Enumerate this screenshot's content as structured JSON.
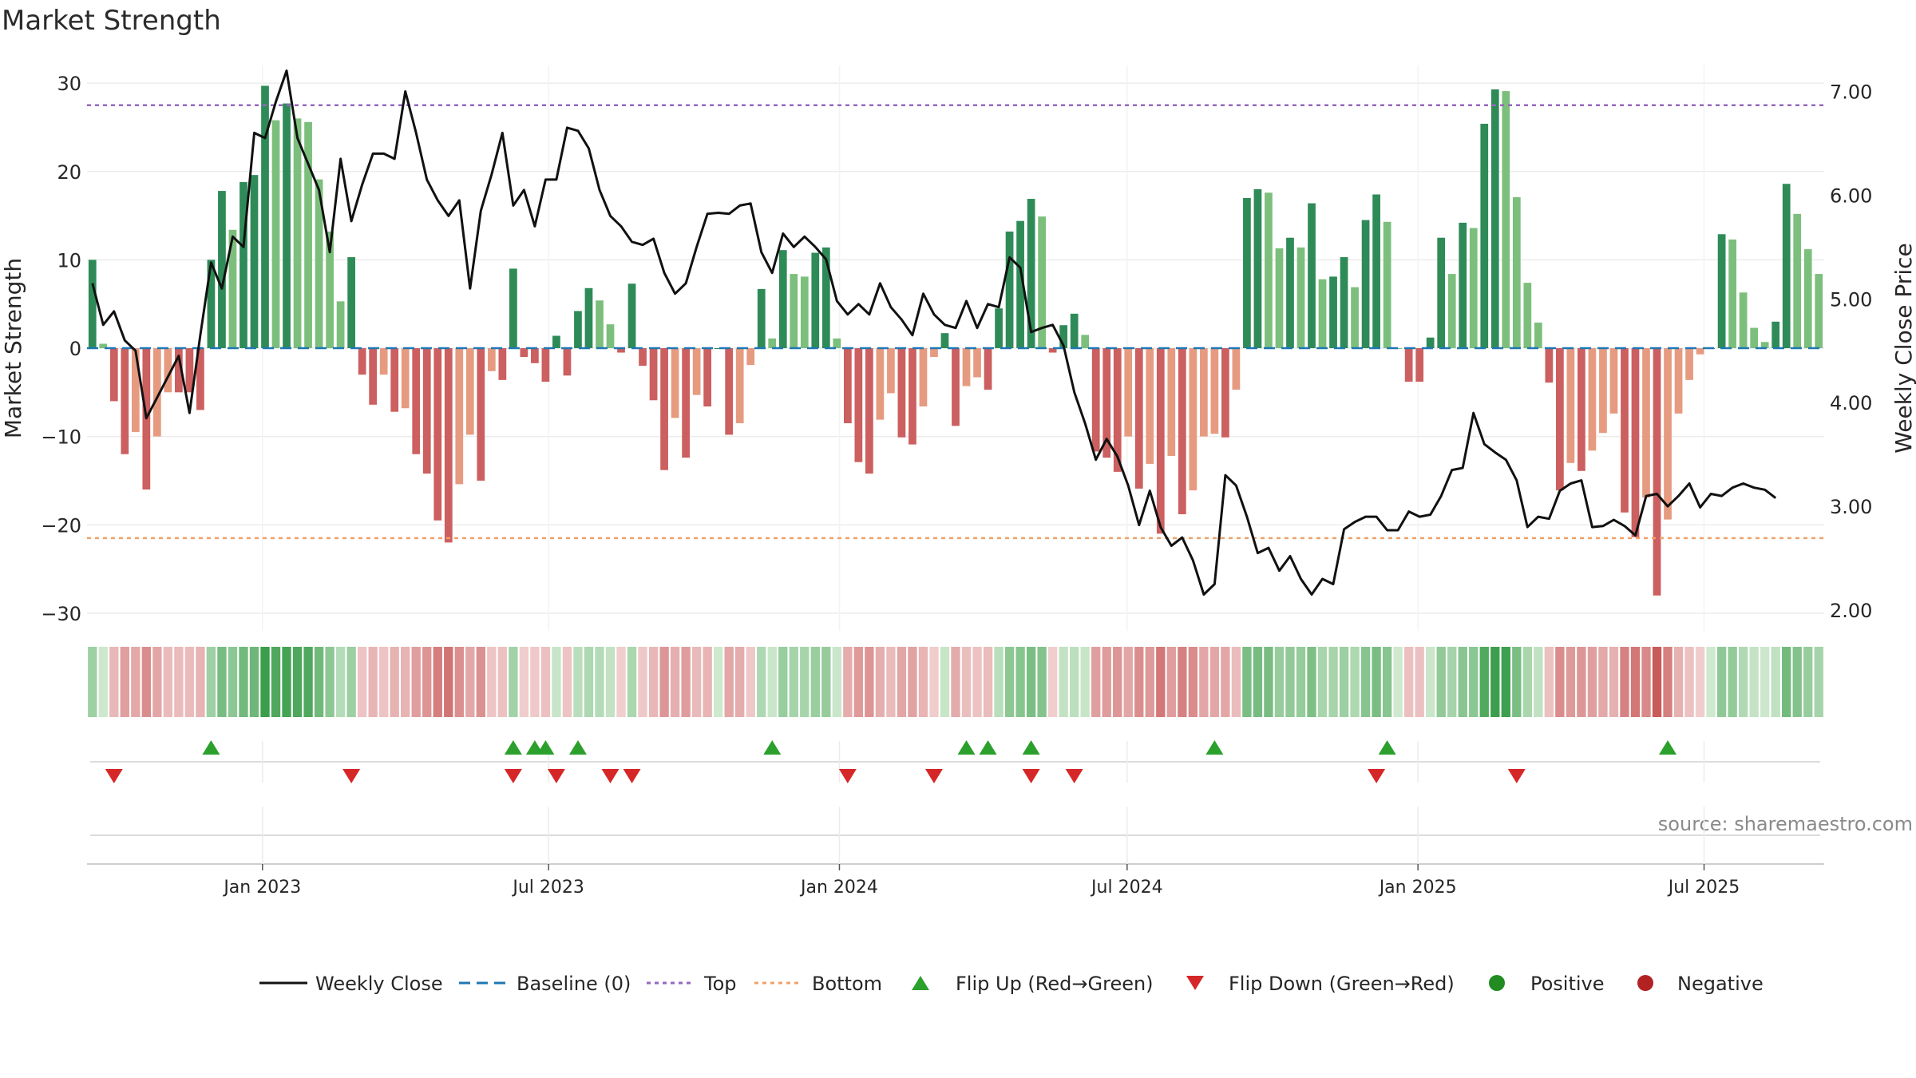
{
  "title": "Market Strength",
  "source": "source: sharemaestro.com",
  "colors": {
    "pos_dark": "#2e8b57",
    "pos_light": "#7cbf7c",
    "neg_dark": "#cc5f5f",
    "neg_light": "#e69b80",
    "top_line": "#9467bd",
    "bottom_line": "#f0a068",
    "baseline": "#1f77b4",
    "close_line": "#111111",
    "flip_up": "#2ca02c",
    "flip_down": "#d62728",
    "positive_dot": "#228b22",
    "negative_dot": "#b22222"
  },
  "chart_data": {
    "type": "bar",
    "title": "Market Strength",
    "ylabel": "Market Strength",
    "y2label": "Weekly Close Price",
    "ylim": [
      -32,
      32
    ],
    "y2lim": [
      1.8,
      7.25
    ],
    "yticks": [
      30,
      20,
      10,
      0,
      -10,
      -20,
      -30
    ],
    "ytick_labels": [
      "30",
      "20",
      "10",
      "0",
      "−10",
      "−20",
      "−30"
    ],
    "y2ticks": [
      7.0,
      6.0,
      5.0,
      4.0,
      3.0,
      2.0
    ],
    "y2tick_labels": [
      "7.00",
      "6.00",
      "5.00",
      "4.00",
      "3.00",
      "2.00"
    ],
    "top": 27.5,
    "bottom": -21.5,
    "x_start": "2022-09-12",
    "x_end": "2025-09-15",
    "xticks": [
      {
        "date": "2023-01-01",
        "label": "Jan 2023"
      },
      {
        "date": "2023-07-01",
        "label": "Jul 2023"
      },
      {
        "date": "2024-01-01",
        "label": "Jan 2024"
      },
      {
        "date": "2024-07-01",
        "label": "Jul 2024"
      },
      {
        "date": "2025-01-01",
        "label": "Jan 2025"
      },
      {
        "date": "2025-07-01",
        "label": "Jul 2025"
      }
    ],
    "strength": [
      10,
      0.5,
      -6,
      -12,
      -9.5,
      -16,
      -10,
      -5,
      -5,
      -5,
      -7,
      10,
      17.8,
      13.4,
      18.8,
      19.6,
      29.7,
      25.8,
      27.7,
      26,
      25.6,
      19.1,
      13.2,
      5.3,
      10.3,
      -3,
      -6.4,
      -3,
      -7.2,
      -6.8,
      -12,
      -14.2,
      -19.5,
      -22,
      -15.4,
      -9.8,
      -15,
      -2.6,
      -3.6,
      9,
      -1,
      -1.7,
      -3.8,
      1.4,
      -3.1,
      4.2,
      6.8,
      5.4,
      2.7,
      -0.5,
      7.3,
      -2,
      -5.9,
      -13.8,
      -7.9,
      -12.4,
      -5.3,
      -6.6,
      0,
      -9.8,
      -8.5,
      -1.9,
      6.7,
      1.1,
      11.1,
      8.4,
      8.1,
      10.8,
      11.4,
      1.1,
      -8.5,
      -12.9,
      -14.2,
      -8.1,
      -5.1,
      -10.1,
      -10.9,
      -6.6,
      -1,
      1.7,
      -8.8,
      -4.3,
      -3.3,
      -4.7,
      4.5,
      13.2,
      14.4,
      16.9,
      14.9,
      -0.5,
      2.6,
      3.9,
      1.5,
      -11.7,
      -12.4,
      -14,
      -10,
      -15.9,
      -13.1,
      -21,
      -12.2,
      -18.8,
      -16.1,
      -10,
      -9.7,
      -10.1,
      -4.7,
      17,
      18,
      17.6,
      11.3,
      12.5,
      11.4,
      16.4,
      7.8,
      8.1,
      10.3,
      6.9,
      14.5,
      17.4,
      14.3,
      0,
      -3.8,
      -3.8,
      1.2,
      12.5,
      8.4,
      14.2,
      13.6,
      25.4,
      29.3,
      29.1,
      17.1,
      7.4,
      2.9,
      -3.9,
      -16.1,
      -13,
      -13.9,
      -11.6,
      -9.6,
      -7.4,
      -18.6,
      -21.4,
      -16.9,
      -28,
      -19.4,
      -7.4,
      -3.6,
      -0.7,
      0,
      12.9,
      12.3,
      6.3,
      2.3,
      0.7,
      3,
      18.6,
      15.2,
      11.2,
      8.4
    ],
    "close": [
      5.15,
      4.75,
      4.88,
      4.6,
      4.5,
      3.85,
      4.05,
      4.25,
      4.45,
      3.9,
      4.65,
      5.35,
      5.1,
      5.6,
      5.5,
      6.6,
      6.55,
      6.9,
      7.2,
      6.55,
      6.3,
      6.05,
      5.45,
      6.35,
      5.75,
      6.1,
      6.4,
      6.4,
      6.35,
      7.0,
      6.6,
      6.15,
      5.95,
      5.8,
      5.95,
      5.1,
      5.85,
      6.2,
      6.6,
      5.9,
      6.05,
      5.7,
      6.15,
      6.15,
      6.65,
      6.62,
      6.45,
      6.05,
      5.8,
      5.7,
      5.55,
      5.52,
      5.58,
      5.25,
      5.05,
      5.15,
      5.5,
      5.82,
      5.83,
      5.82,
      5.9,
      5.92,
      5.45,
      5.25,
      5.63,
      5.5,
      5.6,
      5.5,
      5.38,
      4.98,
      4.85,
      4.95,
      4.85,
      5.15,
      4.92,
      4.8,
      4.65,
      5.05,
      4.85,
      4.75,
      4.72,
      4.98,
      4.72,
      4.95,
      4.92,
      5.4,
      5.3,
      4.68,
      4.72,
      4.75,
      4.55,
      4.1,
      3.8,
      3.45,
      3.65,
      3.48,
      3.2,
      2.82,
      3.15,
      2.8,
      2.62,
      2.7,
      2.48,
      2.15,
      2.25,
      3.3,
      3.2,
      2.9,
      2.55,
      2.6,
      2.38,
      2.52,
      2.3,
      2.15,
      2.3,
      2.25,
      2.78,
      2.85,
      2.9,
      2.9,
      2.77,
      2.77,
      2.95,
      2.9,
      2.92,
      3.1,
      3.35,
      3.37,
      3.9,
      3.6,
      3.52,
      3.45,
      3.25,
      2.8,
      2.9,
      2.88,
      3.15,
      3.22,
      3.25,
      2.8,
      2.81,
      2.87,
      2.81,
      2.72,
      3.1,
      3.12,
      3.0,
      3.1,
      3.22,
      2.99,
      3.12,
      3.1,
      3.18,
      3.22,
      3.18,
      3.16,
      3.08
    ],
    "flip_up_weeks": [
      11,
      39,
      41,
      42,
      45,
      63,
      81,
      83,
      87,
      104,
      120,
      146
    ],
    "flip_down_weeks": [
      2,
      24,
      39,
      43,
      48,
      50,
      70,
      78,
      87,
      91,
      119,
      132
    ],
    "legend": [
      {
        "key": "close",
        "label": "Weekly Close"
      },
      {
        "key": "baseline",
        "label": "Baseline (0)"
      },
      {
        "key": "top",
        "label": "Top"
      },
      {
        "key": "bottom",
        "label": "Bottom"
      },
      {
        "key": "flip_up",
        "label": "Flip Up (Red→Green)"
      },
      {
        "key": "flip_down",
        "label": "Flip Down (Green→Red)"
      },
      {
        "key": "positive",
        "label": "Positive"
      },
      {
        "key": "negative",
        "label": "Negative"
      }
    ]
  }
}
